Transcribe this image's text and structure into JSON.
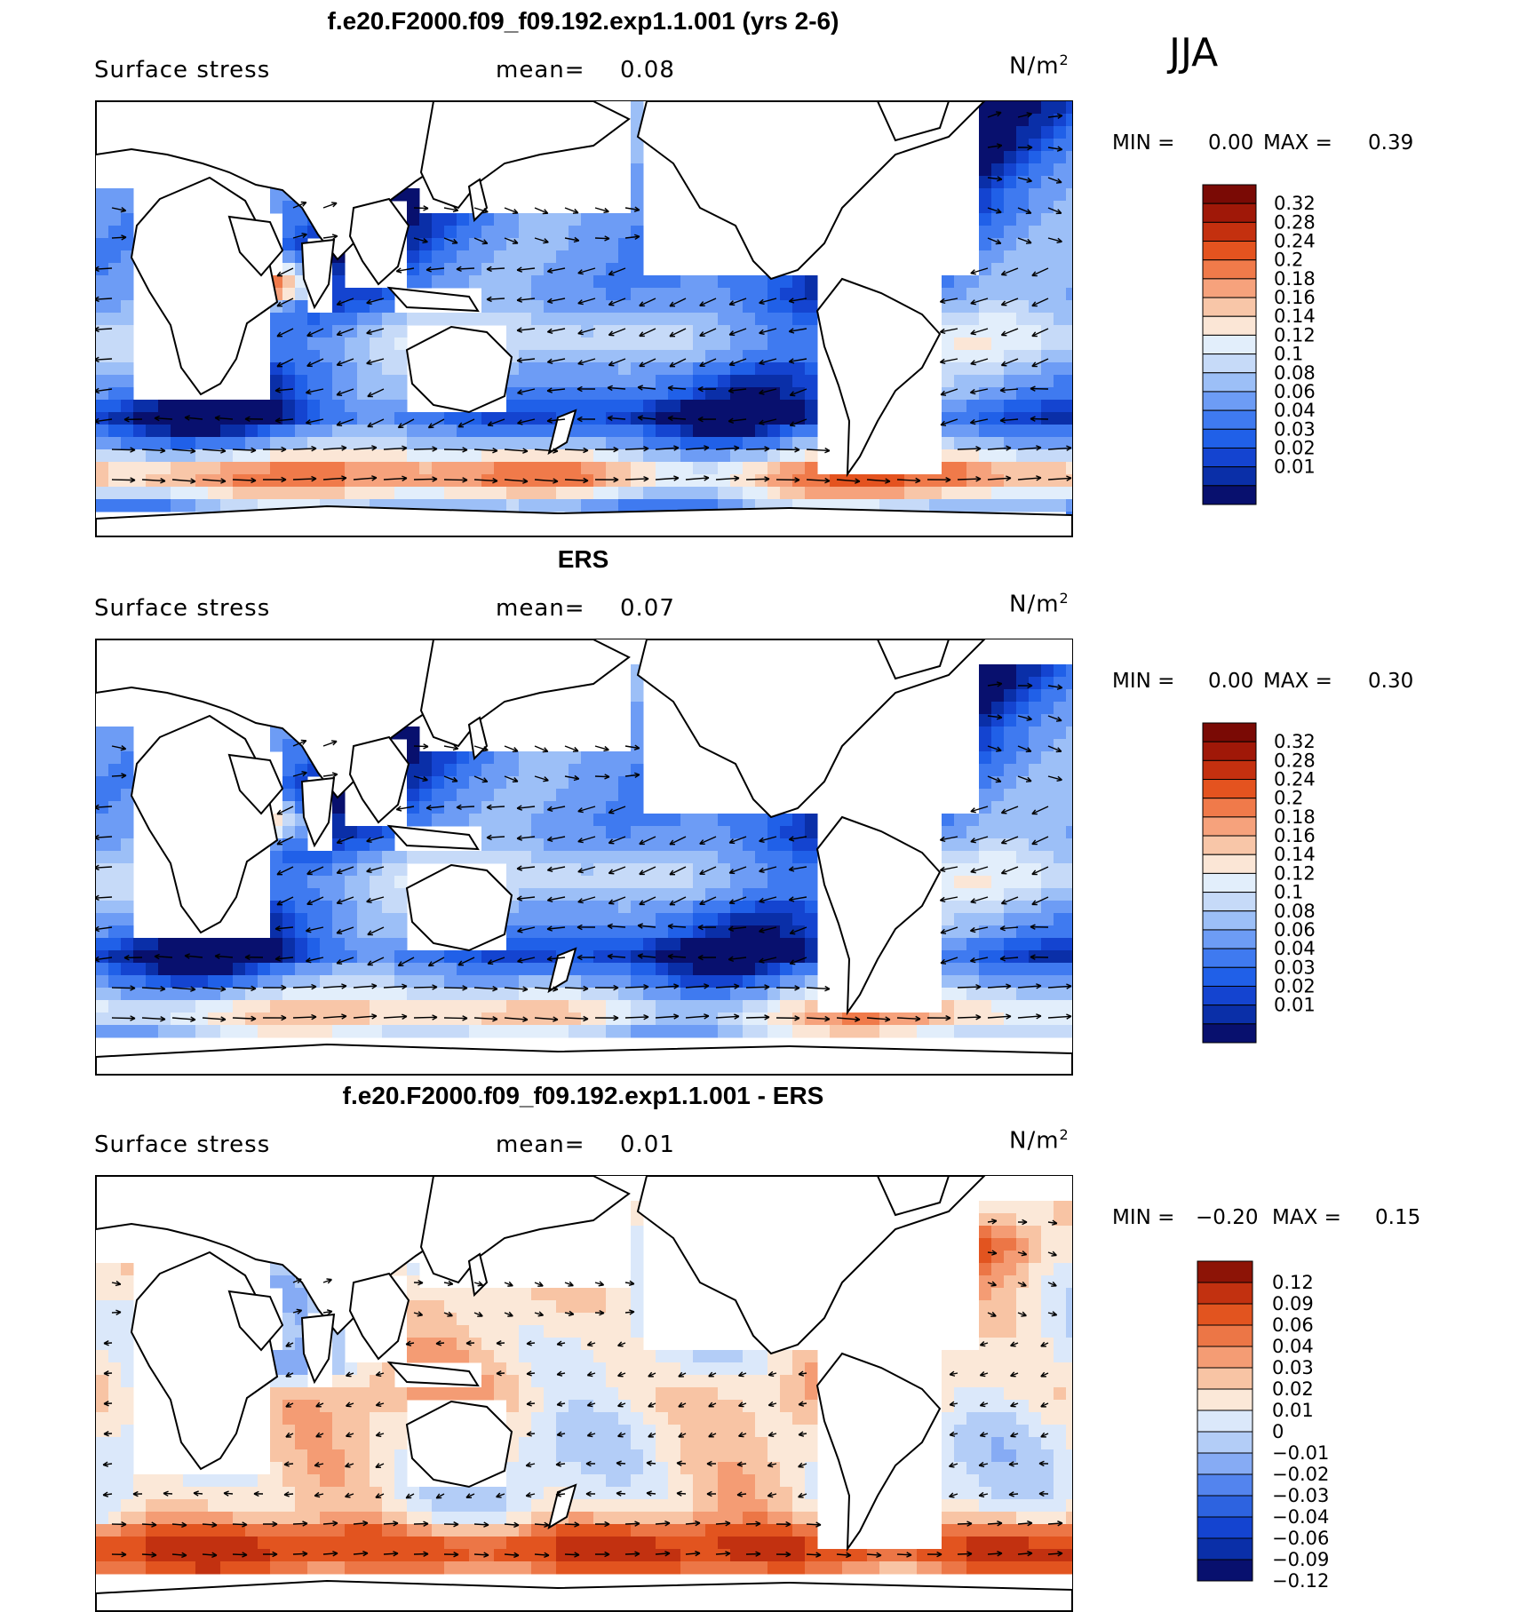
{
  "season": "JJA",
  "unit_label": "N/m",
  "unit_sup": "2",
  "colors": {
    "seq": [
      "#08106e",
      "#0a2fa8",
      "#1444d0",
      "#2060e8",
      "#3f7af0",
      "#6d9cf5",
      "#9cbff7",
      "#c6daf8",
      "#e2eefb",
      "#fbe6d6",
      "#f8c6a8",
      "#f6a27c",
      "#f07a4a",
      "#e4531f",
      "#c4300f",
      "#a01808",
      "#7a0a05"
    ],
    "div": [
      "#08106e",
      "#0a2fa8",
      "#1444d0",
      "#2d63e0",
      "#5384ee",
      "#86abf4",
      "#b3cdf7",
      "#dbe8fa",
      "#fbe8d8",
      "#f8c4a4",
      "#f49c74",
      "#ec7646",
      "#e2541f",
      "#c23110",
      "#8d1406"
    ]
  },
  "chart_data": [
    {
      "type": "heatmap",
      "title": "f.e20.F2000.f09_f09.192.exp1.1.001 (yrs 2-6)",
      "variable": "Surface stress",
      "mean_label": "mean=",
      "mean": "0.08",
      "min_label": "MIN =",
      "min": "0.00",
      "max_label": "MAX =",
      "max": "0.39",
      "colorbar_labels": [
        "0.32",
        "0.28",
        "0.24",
        "0.2",
        "0.18",
        "0.16",
        "0.14",
        "0.12",
        "0.1",
        "0.08",
        "0.06",
        "0.04",
        "0.03",
        "0.02",
        "0.01"
      ],
      "palette": "seq",
      "mask": "none"
    },
    {
      "type": "heatmap",
      "title": "ERS",
      "variable": "Surface stress",
      "mean_label": "mean=",
      "mean": "0.07",
      "min_label": "MIN =",
      "min": "0.00",
      "max_label": "MAX =",
      "max": "0.30",
      "colorbar_labels": [
        "0.32",
        "0.28",
        "0.24",
        "0.2",
        "0.18",
        "0.16",
        "0.14",
        "0.12",
        "0.1",
        "0.08",
        "0.06",
        "0.04",
        "0.03",
        "0.02",
        "0.01"
      ],
      "palette": "seq",
      "mask": "ice"
    },
    {
      "type": "heatmap",
      "title": "f.e20.F2000.f09_f09.192.exp1.1.001 - ERS",
      "variable": "Surface stress",
      "mean_label": "mean=",
      "mean": "0.01",
      "min_label": "MIN =",
      "min": "−0.20",
      "max_label": "MAX =",
      "max": "0.15",
      "colorbar_labels": [
        "0.12",
        "0.09",
        "0.06",
        "0.04",
        "0.03",
        "0.02",
        "0.01",
        "0",
        "−0.01",
        "−0.02",
        "−0.03",
        "−0.04",
        "−0.06",
        "−0.09",
        "−0.12"
      ],
      "palette": "div",
      "mask": "ice"
    }
  ]
}
